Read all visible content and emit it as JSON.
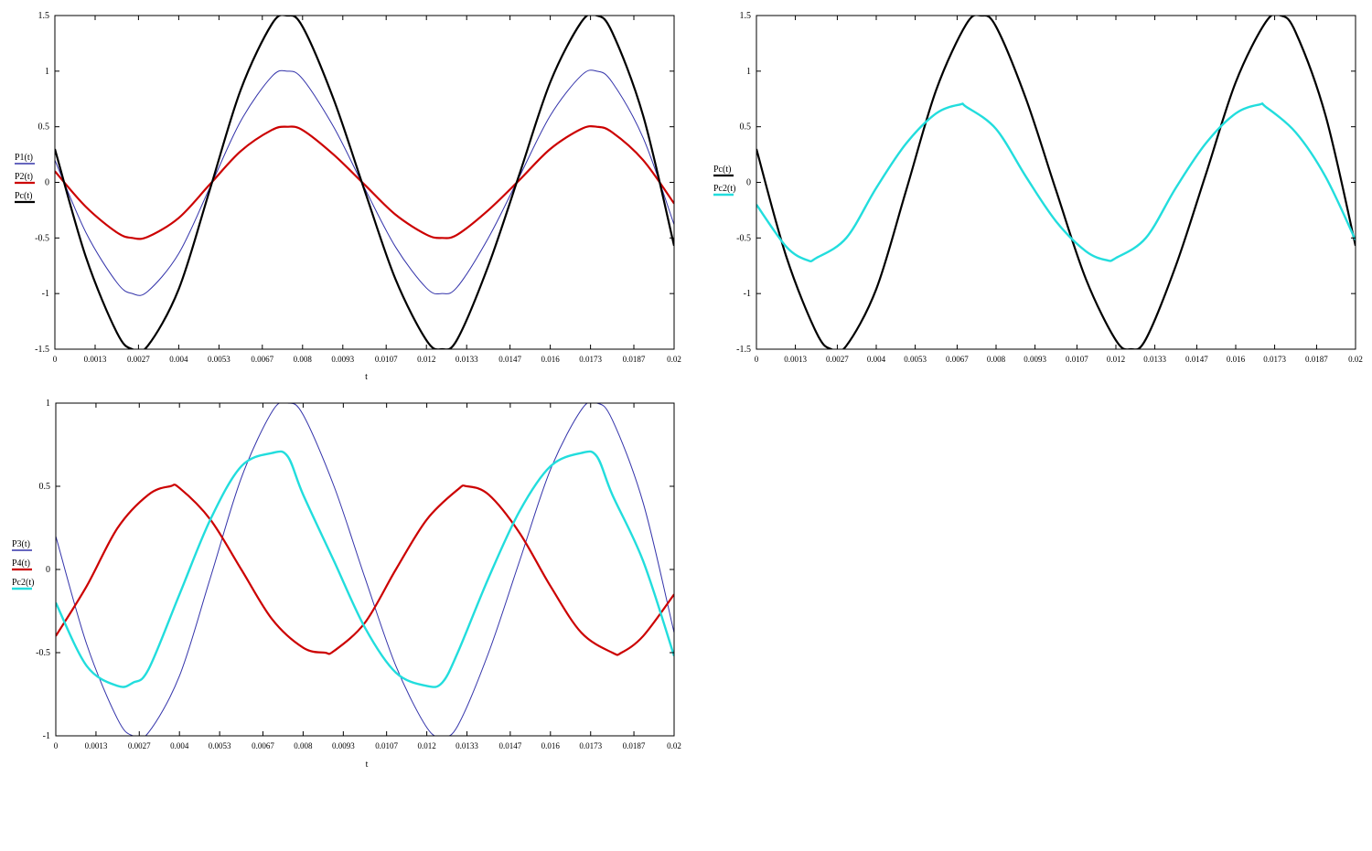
{
  "chart_data": [
    {
      "type": "line",
      "xlabel": "t",
      "xlim": [
        0,
        0.02
      ],
      "ylim": [
        -1.5,
        1.5
      ],
      "x_ticks": [
        "0",
        "0.0013",
        "0.0027",
        "0.004",
        "0.0053",
        "0.0067",
        "0.008",
        "0.0093",
        "0.0107",
        "0.012",
        "0.0133",
        "0.0147",
        "0.016",
        "0.0173",
        "0.0187",
        "0.02"
      ],
      "y_ticks": [
        "1.5",
        "1",
        "0.5",
        "0",
        "-0.5",
        "-1",
        "-1.5"
      ],
      "grid": false,
      "legend_position": "left",
      "series": [
        {
          "name": "P1(t)",
          "color": "#3333aa",
          "width": 1,
          "x": [
            0,
            0.001,
            0.002,
            0.0025,
            0.003,
            0.004,
            0.005,
            0.006,
            0.007,
            0.0075,
            0.008,
            0.009,
            0.01,
            0.011,
            0.012,
            0.0125,
            0.013,
            0.014,
            0.015,
            0.016,
            0.017,
            0.0175,
            0.018,
            0.019,
            0.02
          ],
          "y": [
            0.2,
            -0.45,
            -0.9,
            -1.0,
            -0.98,
            -0.64,
            -0.05,
            0.55,
            0.95,
            1.0,
            0.93,
            0.5,
            -0.05,
            -0.58,
            -0.95,
            -1.0,
            -0.94,
            -0.5,
            0.05,
            0.6,
            0.96,
            1.0,
            0.9,
            0.4,
            -0.38
          ]
        },
        {
          "name": "P2(t)",
          "color": "#cc0000",
          "width": 2.2,
          "x": [
            0,
            0.001,
            0.002,
            0.0025,
            0.003,
            0.004,
            0.005,
            0.006,
            0.007,
            0.0075,
            0.008,
            0.009,
            0.01,
            0.011,
            0.012,
            0.0125,
            0.013,
            0.014,
            0.015,
            0.016,
            0.017,
            0.0175,
            0.018,
            0.019,
            0.02
          ],
          "y": [
            0.1,
            -0.22,
            -0.45,
            -0.5,
            -0.49,
            -0.32,
            -0.02,
            0.28,
            0.47,
            0.5,
            0.47,
            0.25,
            -0.02,
            -0.29,
            -0.47,
            -0.5,
            -0.47,
            -0.25,
            0.02,
            0.3,
            0.48,
            0.5,
            0.45,
            0.2,
            -0.19
          ]
        },
        {
          "name": "Pc(t)",
          "color": "#000000",
          "width": 2.2,
          "x": [
            0,
            0.001,
            0.002,
            0.0025,
            0.003,
            0.004,
            0.005,
            0.006,
            0.007,
            0.0075,
            0.008,
            0.009,
            0.01,
            0.011,
            0.012,
            0.0125,
            0.013,
            0.014,
            0.015,
            0.016,
            0.017,
            0.0175,
            0.018,
            0.019,
            0.02
          ],
          "y": [
            0.3,
            -0.67,
            -1.35,
            -1.5,
            -1.47,
            -0.96,
            -0.07,
            0.83,
            1.42,
            1.5,
            1.4,
            0.75,
            -0.07,
            -0.87,
            -1.42,
            -1.5,
            -1.41,
            -0.75,
            0.07,
            0.9,
            1.44,
            1.5,
            1.35,
            0.6,
            -0.57
          ]
        }
      ]
    },
    {
      "type": "line",
      "xlabel": "",
      "xlim": [
        0,
        0.02
      ],
      "ylim": [
        -1.5,
        1.5
      ],
      "x_ticks": [
        "0",
        "0.0013",
        "0.0027",
        "0.004",
        "0.0053",
        "0.0067",
        "0.008",
        "0.0093",
        "0.0107",
        "0.012",
        "0.0133",
        "0.0147",
        "0.016",
        "0.0173",
        "0.0187",
        "0.02"
      ],
      "y_ticks": [
        "1.5",
        "1",
        "0.5",
        "0",
        "-0.5",
        "-1",
        "-1.5"
      ],
      "grid": false,
      "legend_position": "left",
      "series": [
        {
          "name": "Pc(t)",
          "color": "#000000",
          "width": 2.2,
          "x": [
            0,
            0.001,
            0.002,
            0.0025,
            0.003,
            0.004,
            0.005,
            0.006,
            0.007,
            0.0075,
            0.008,
            0.009,
            0.01,
            0.011,
            0.012,
            0.0125,
            0.013,
            0.014,
            0.015,
            0.016,
            0.017,
            0.0175,
            0.018,
            0.019,
            0.02
          ],
          "y": [
            0.3,
            -0.67,
            -1.35,
            -1.5,
            -1.47,
            -0.96,
            -0.07,
            0.83,
            1.42,
            1.5,
            1.4,
            0.75,
            -0.07,
            -0.87,
            -1.42,
            -1.5,
            -1.41,
            -0.75,
            0.07,
            0.9,
            1.44,
            1.5,
            1.35,
            0.6,
            -0.57
          ]
        },
        {
          "name": "Pc2(t)",
          "color": "#22dddd",
          "width": 2.4,
          "x": [
            0,
            0.001,
            0.0017,
            0.002,
            0.003,
            0.004,
            0.005,
            0.006,
            0.0068,
            0.007,
            0.008,
            0.009,
            0.01,
            0.011,
            0.0117,
            0.012,
            0.013,
            0.014,
            0.015,
            0.016,
            0.0168,
            0.017,
            0.018,
            0.019,
            0.02
          ],
          "y": [
            -0.2,
            -0.58,
            -0.7,
            -0.68,
            -0.5,
            -0.05,
            0.35,
            0.62,
            0.7,
            0.68,
            0.48,
            0.05,
            -0.35,
            -0.62,
            -0.7,
            -0.68,
            -0.5,
            -0.05,
            0.35,
            0.62,
            0.7,
            0.68,
            0.45,
            0.05,
            -0.52
          ]
        }
      ]
    },
    {
      "type": "line",
      "xlabel": "t",
      "xlim": [
        0,
        0.02
      ],
      "ylim": [
        -1,
        1
      ],
      "x_ticks": [
        "0",
        "0.0013",
        "0.0027",
        "0.004",
        "0.0053",
        "0.0067",
        "0.008",
        "0.0093",
        "0.0107",
        "0.012",
        "0.0133",
        "0.0147",
        "0.016",
        "0.0173",
        "0.0187",
        "0.02"
      ],
      "y_ticks": [
        "1",
        "0.5",
        "0",
        "-0.5",
        "-1"
      ],
      "grid": false,
      "legend_position": "left",
      "series": [
        {
          "name": "P3(t)",
          "color": "#3333aa",
          "width": 1,
          "x": [
            0,
            0.001,
            0.002,
            0.0025,
            0.003,
            0.004,
            0.005,
            0.006,
            0.007,
            0.0075,
            0.008,
            0.009,
            0.01,
            0.011,
            0.012,
            0.0125,
            0.013,
            0.014,
            0.015,
            0.016,
            0.017,
            0.0175,
            0.018,
            0.019,
            0.02
          ],
          "y": [
            0.2,
            -0.45,
            -0.9,
            -1.0,
            -0.98,
            -0.64,
            -0.05,
            0.55,
            0.95,
            1.0,
            0.93,
            0.5,
            -0.05,
            -0.58,
            -0.95,
            -1.0,
            -0.94,
            -0.5,
            0.05,
            0.6,
            0.96,
            1.0,
            0.9,
            0.4,
            -0.38
          ]
        },
        {
          "name": "P4(t)",
          "color": "#cc0000",
          "width": 2.2,
          "x": [
            0,
            0.001,
            0.002,
            0.003,
            0.0037,
            0.004,
            0.005,
            0.006,
            0.007,
            0.008,
            0.0087,
            0.009,
            0.01,
            0.011,
            0.012,
            0.013,
            0.0133,
            0.014,
            0.015,
            0.016,
            0.017,
            0.018,
            0.0183,
            0.019,
            0.02
          ],
          "y": [
            -0.4,
            -0.1,
            0.25,
            0.45,
            0.5,
            0.49,
            0.3,
            0.0,
            -0.3,
            -0.47,
            -0.5,
            -0.49,
            -0.32,
            0.0,
            0.3,
            0.48,
            0.5,
            0.45,
            0.22,
            -0.1,
            -0.38,
            -0.5,
            -0.5,
            -0.4,
            -0.15
          ]
        },
        {
          "name": "Pc2(t)",
          "color": "#22dddd",
          "width": 2.4,
          "x": [
            0,
            0.001,
            0.002,
            0.0025,
            0.003,
            0.004,
            0.005,
            0.006,
            0.007,
            0.0075,
            0.008,
            0.009,
            0.01,
            0.011,
            0.012,
            0.0125,
            0.013,
            0.014,
            0.015,
            0.016,
            0.017,
            0.0175,
            0.018,
            0.019,
            0.02
          ],
          "y": [
            -0.2,
            -0.58,
            -0.7,
            -0.68,
            -0.6,
            -0.15,
            0.3,
            0.62,
            0.7,
            0.68,
            0.45,
            0.05,
            -0.35,
            -0.62,
            -0.7,
            -0.68,
            -0.5,
            -0.05,
            0.35,
            0.62,
            0.7,
            0.68,
            0.45,
            0.05,
            -0.52
          ]
        }
      ]
    }
  ]
}
